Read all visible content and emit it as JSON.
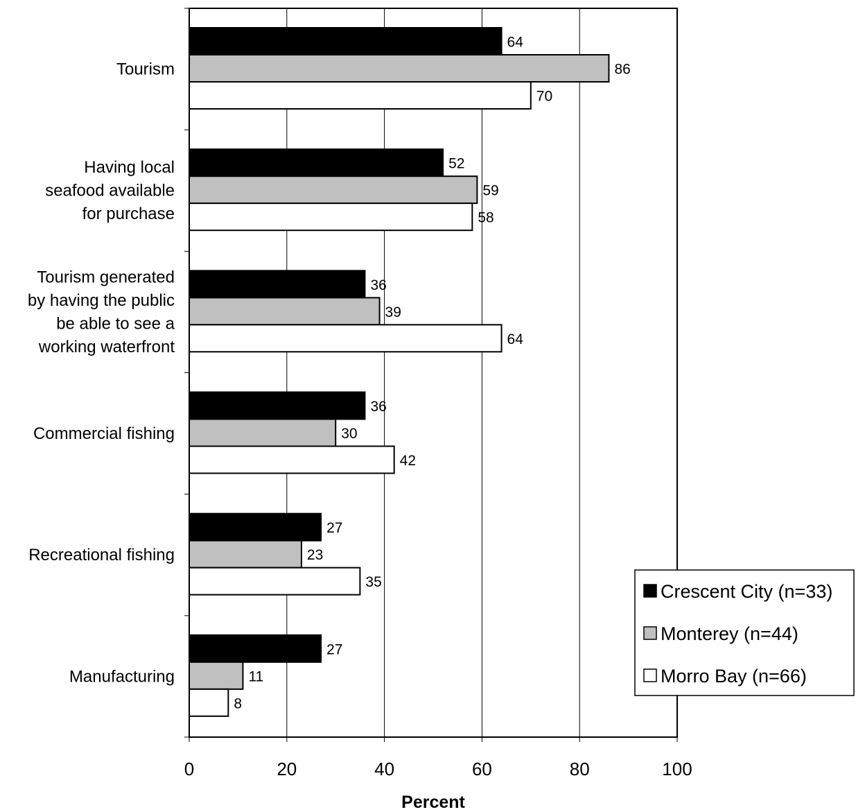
{
  "chart_data": {
    "type": "bar",
    "orientation": "horizontal",
    "categories": [
      [
        "Tourism"
      ],
      [
        "Having local",
        "seafood available",
        "for purchase"
      ],
      [
        "Tourism generated",
        "by having the public",
        "be able to see a",
        "working waterfront"
      ],
      [
        "Commercial fishing"
      ],
      [
        "Recreational fishing"
      ],
      [
        "Manufacturing"
      ]
    ],
    "series": [
      {
        "name": "Crescent City (n=33)",
        "color": "#000000",
        "values": [
          64,
          52,
          36,
          36,
          27,
          27
        ]
      },
      {
        "name": "Monterey (n=44)",
        "color": "#c0c0c0",
        "values": [
          86,
          59,
          39,
          30,
          23,
          11
        ]
      },
      {
        "name": "Morro Bay (n=66)",
        "color": "#ffffff",
        "values": [
          70,
          58,
          64,
          42,
          35,
          8
        ]
      }
    ],
    "xlabel": "Percent",
    "ylabel": "",
    "title": "",
    "xlim": [
      0,
      100
    ],
    "xticks": [
      0,
      20,
      40,
      60,
      80,
      100
    ],
    "grid": "vertical",
    "legend_position": "bottom-right"
  }
}
